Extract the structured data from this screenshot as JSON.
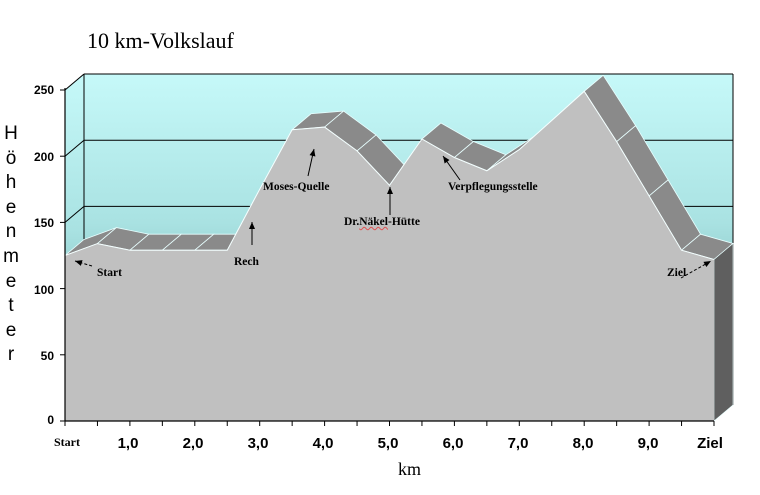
{
  "chart_data": {
    "type": "area",
    "title": "10 km-Volkslauf",
    "xlabel": "km",
    "ylabel": "Höhenmeter",
    "ylim": [
      0,
      250
    ],
    "yticks": [
      0,
      50,
      100,
      150,
      200,
      250
    ],
    "xticks": [
      "Start",
      "1,0",
      "2,0",
      "3,0",
      "4,0",
      "5,0",
      "6,0",
      "7,0",
      "8,0",
      "9,0",
      "Ziel"
    ],
    "grid": true,
    "three_d": true,
    "x": [
      0,
      0.5,
      1.0,
      1.5,
      2.0,
      2.5,
      3.0,
      3.5,
      4.0,
      4.5,
      5.0,
      5.5,
      6.0,
      6.5,
      7.0,
      7.5,
      8.0,
      8.5,
      9.0,
      9.5,
      10.0
    ],
    "values": [
      125,
      134,
      129,
      129,
      129,
      129,
      175,
      220,
      222,
      204,
      178,
      213,
      199,
      189,
      205,
      227,
      249,
      211,
      170,
      129,
      122
    ],
    "annotations": [
      {
        "label": "Start",
        "x": 0,
        "y": 125
      },
      {
        "label": "Rech",
        "x": 2.8,
        "y": 150
      },
      {
        "label": "Moses-Quelle",
        "x": 3.8,
        "y": 206
      },
      {
        "label": "Dr.Näkel-Hütte",
        "x": 5.0,
        "y": 178
      },
      {
        "label": "Verpflegungsstelle",
        "x": 5.9,
        "y": 207
      },
      {
        "label": "Ziel",
        "x": 10.0,
        "y": 122
      }
    ],
    "colors": {
      "area_front": "#c0c0c0",
      "area_top": "#8a8a8a",
      "area_side": "#5f5f5f",
      "wall_top": "#c6f9f9",
      "wall_bottom": "#6aa6a6"
    }
  },
  "labels": {
    "title": "10 km-Volkslauf",
    "ylabel_chars": [
      "H",
      "ö",
      "h",
      "e",
      "n",
      "m",
      "e",
      "t",
      "e",
      "r"
    ],
    "xlabel": "km",
    "ann_start": "Start",
    "ann_rech": "Rech",
    "ann_moses": "Moses-Quelle",
    "ann_dr": "Dr.",
    "ann_naekel": "Näkel",
    "ann_huette": "-Hütte",
    "ann_verpf": "Verpflegungsstelle",
    "ann_ziel": "Ziel"
  }
}
